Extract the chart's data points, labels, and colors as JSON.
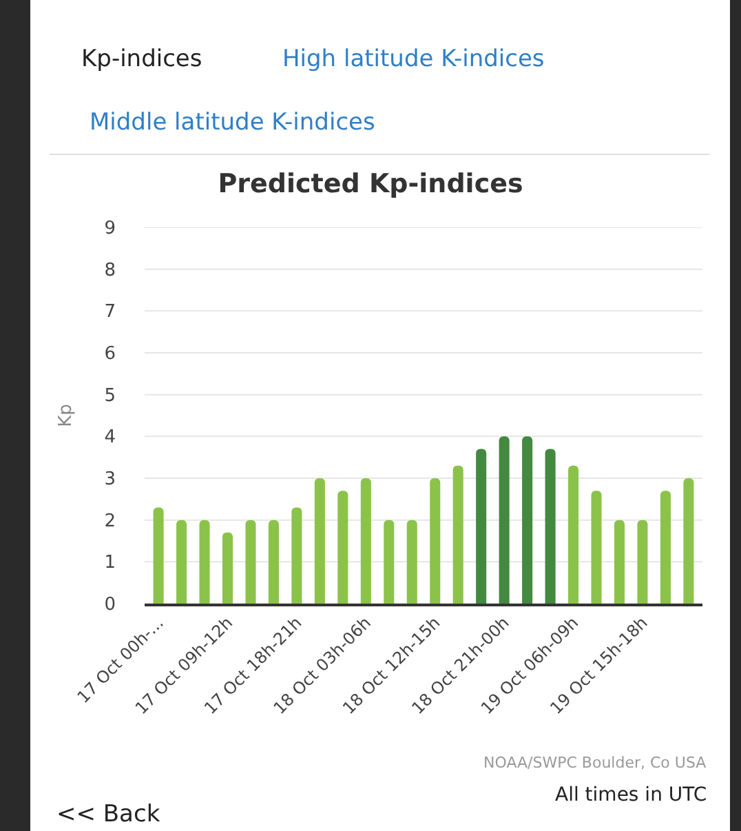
{
  "chart_data": {
    "type": "bar",
    "title": "Predicted Kp-indices",
    "ylabel": "Kp",
    "categories": [
      "17 Oct 00h-...",
      null,
      null,
      "17 Oct 09h-12h",
      null,
      null,
      "17 Oct 18h-21h",
      null,
      null,
      "18 Oct 03h-06h",
      null,
      null,
      "18 Oct 12h-15h",
      null,
      null,
      "18 Oct 21h-00h",
      null,
      null,
      "19 Oct 06h-09h",
      null,
      null,
      "19 Oct 15h-18h",
      null,
      null
    ],
    "values": [
      2.3,
      2,
      2,
      1.7,
      2,
      2,
      2.3,
      3,
      2.7,
      3,
      2,
      2,
      3,
      3.3,
      3.7,
      4,
      4,
      3.7,
      3.3,
      2.7,
      2,
      2,
      2.7,
      3
    ],
    "colors": [
      "#8bc34a",
      "#8bc34a",
      "#8bc34a",
      "#8bc34a",
      "#8bc34a",
      "#8bc34a",
      "#8bc34a",
      "#8bc34a",
      "#8bc34a",
      "#8bc34a",
      "#8bc34a",
      "#8bc34a",
      "#8bc34a",
      "#8bc34a",
      "#43893f",
      "#43893f",
      "#43893f",
      "#43893f",
      "#8bc34a",
      "#8bc34a",
      "#8bc34a",
      "#8bc34a",
      "#8bc34a",
      "#8bc34a"
    ],
    "ylim": [
      0,
      9
    ],
    "yticks": [
      0,
      1,
      2,
      3,
      4,
      5,
      6,
      7,
      8,
      9
    ],
    "grid": "y",
    "annotations": [
      "Kp-indices",
      "High latitude K-indices",
      "Middle latitude K-indices",
      "NOAA/SWPC Boulder, Co USA",
      "All times in UTC",
      "<< Back"
    ]
  }
}
